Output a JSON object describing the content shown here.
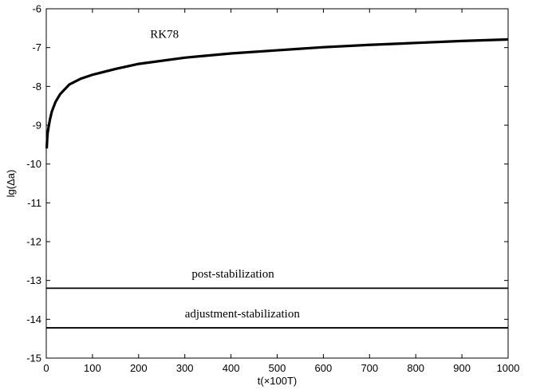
{
  "chart_data": {
    "type": "line",
    "xlabel": "t(×100T)",
    "ylabel": "lg(Δa)",
    "xlim": [
      0,
      1000
    ],
    "ylim": [
      -15,
      -6
    ],
    "xticks": [
      0,
      100,
      200,
      300,
      400,
      500,
      600,
      700,
      800,
      900,
      1000
    ],
    "yticks": [
      -15,
      -14,
      -13,
      -12,
      -11,
      -10,
      -9,
      -8,
      -7,
      -6
    ],
    "grid": false,
    "annotations": [
      {
        "text": "RK78",
        "x": 225,
        "y": -6.75
      },
      {
        "text": "post-stabilization",
        "x": 315,
        "y": -12.92
      },
      {
        "text": "adjustment-stabilization",
        "x": 300,
        "y": -13.95
      }
    ],
    "series": [
      {
        "x": [
          1,
          2,
          3,
          5,
          8,
          12,
          20,
          30,
          50,
          75,
          100,
          150,
          200,
          300,
          400,
          500,
          600,
          700,
          800,
          900,
          1000
        ],
        "y": [
          -9.6,
          -9.35,
          -9.2,
          -9.05,
          -8.85,
          -8.65,
          -8.4,
          -8.2,
          -7.95,
          -7.8,
          -7.7,
          -7.55,
          -7.42,
          -7.26,
          -7.15,
          -7.07,
          -6.99,
          -6.93,
          -6.88,
          -6.83,
          -6.79
        ]
      },
      {
        "x": [
          0,
          100,
          200,
          300,
          400,
          500,
          600,
          700,
          800,
          900,
          1000
        ],
        "y": [
          -13.2,
          -13.2,
          -13.2,
          -13.2,
          -13.2,
          -13.2,
          -13.2,
          -13.2,
          -13.2,
          -13.2,
          -13.2
        ]
      },
      {
        "x": [
          0,
          100,
          200,
          300,
          400,
          500,
          600,
          700,
          800,
          900,
          1000
        ],
        "y": [
          -14.22,
          -14.22,
          -14.22,
          -14.22,
          -14.22,
          -14.22,
          -14.22,
          -14.22,
          -14.22,
          -14.22,
          -14.22
        ]
      }
    ]
  }
}
